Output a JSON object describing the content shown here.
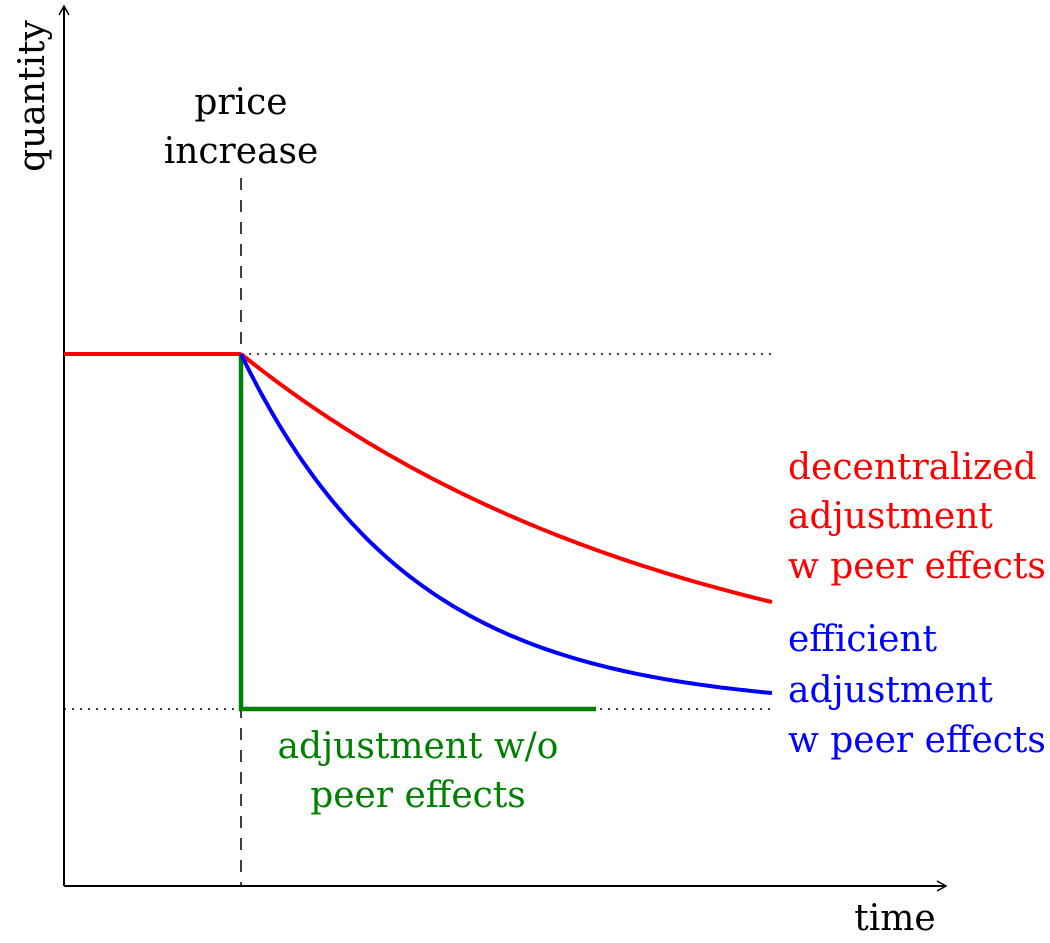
{
  "axes": {
    "x_label": "time",
    "y_label": "quantity"
  },
  "event": {
    "line1": "price",
    "line2": "increase"
  },
  "curves": {
    "decentralized": {
      "line1": "decentralized",
      "line2": "adjustment",
      "line3": "w peer effects",
      "color": "#ff0000"
    },
    "efficient": {
      "line1": "efficient",
      "line2": "adjustment",
      "line3": "w peer effects",
      "color": "#0000ff"
    },
    "no_peer": {
      "line1": "adjustment w/o",
      "line2": "peer effects",
      "color": "#008000"
    }
  }
}
